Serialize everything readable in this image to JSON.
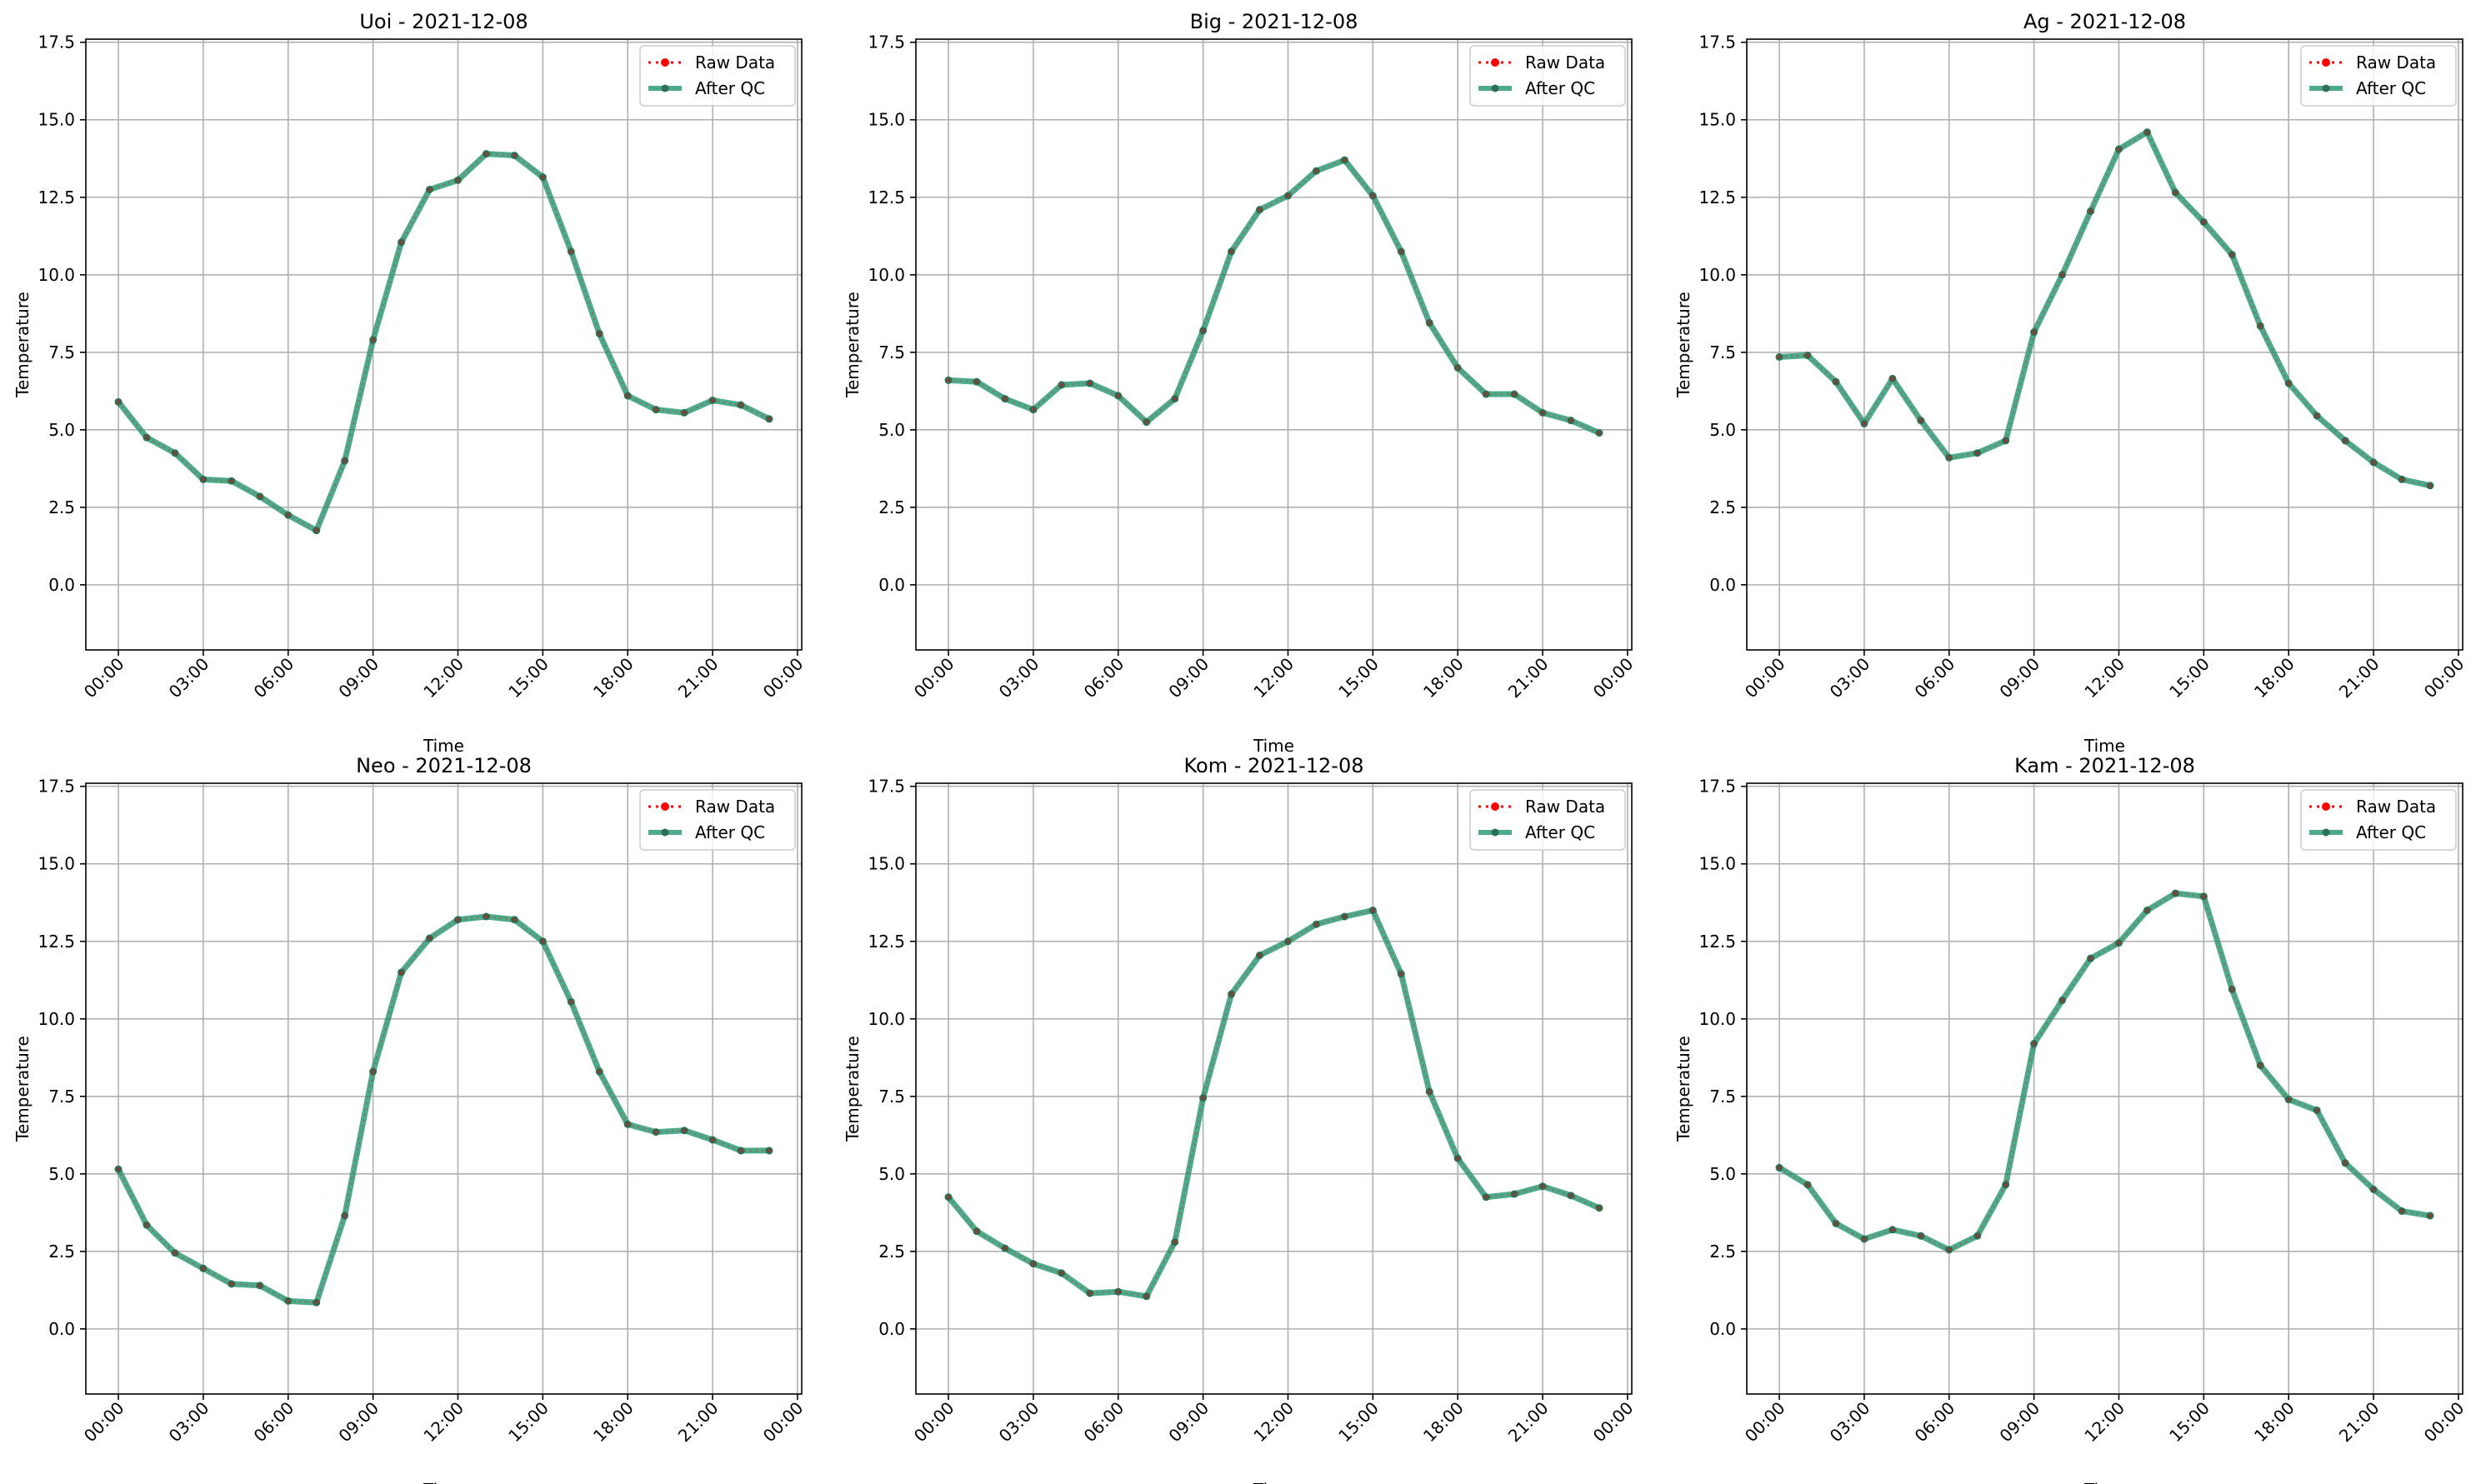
{
  "figure": {
    "colors": {
      "raw": "#ff0000",
      "after_qc": "#2e9b77",
      "after_qc_marker": "#2e6e55",
      "grid": "#b0b0b0"
    }
  },
  "chart_data": [
    {
      "type": "line",
      "title": "Uoi - 2021-12-08",
      "xlabel": "Time",
      "ylabel": "Temperature",
      "x_ticks": [
        "00:00",
        "03:00",
        "06:00",
        "09:00",
        "12:00",
        "15:00",
        "18:00",
        "21:00",
        "00:00"
      ],
      "y_ticks": [
        "0.0",
        "2.5",
        "5.0",
        "7.5",
        "10.0",
        "12.5",
        "15.0",
        "17.5"
      ],
      "ylim": [
        -2.1,
        17.6
      ],
      "xlim_hours": [
        -1.15,
        24.15
      ],
      "grid": true,
      "legend_position": "upper right",
      "x_hours": [
        0,
        1,
        2,
        3,
        4,
        5,
        6,
        7,
        8,
        9,
        10,
        11,
        12,
        13,
        14,
        15,
        16,
        17,
        18,
        19,
        20,
        21,
        22,
        23
      ],
      "series": [
        {
          "name": "Raw Data",
          "style": "dotted-markers",
          "values": [
            5.9,
            4.75,
            4.25,
            3.4,
            3.35,
            2.85,
            2.25,
            1.75,
            4.0,
            7.9,
            11.05,
            12.75,
            13.05,
            13.9,
            13.85,
            13.15,
            10.75,
            8.1,
            6.1,
            5.65,
            5.55,
            5.95,
            5.8,
            5.35
          ]
        },
        {
          "name": "After QC",
          "style": "solid-markers",
          "values": [
            5.9,
            4.75,
            4.25,
            3.4,
            3.35,
            2.85,
            2.25,
            1.75,
            4.0,
            7.9,
            11.05,
            12.75,
            13.05,
            13.9,
            13.85,
            13.15,
            10.75,
            8.1,
            6.1,
            5.65,
            5.55,
            5.95,
            5.8,
            5.35
          ]
        }
      ]
    },
    {
      "type": "line",
      "title": "Big - 2021-12-08",
      "xlabel": "Time",
      "ylabel": "Temperature",
      "x_ticks": [
        "00:00",
        "03:00",
        "06:00",
        "09:00",
        "12:00",
        "15:00",
        "18:00",
        "21:00",
        "00:00"
      ],
      "y_ticks": [
        "0.0",
        "2.5",
        "5.0",
        "7.5",
        "10.0",
        "12.5",
        "15.0",
        "17.5"
      ],
      "ylim": [
        -2.1,
        17.6
      ],
      "xlim_hours": [
        -1.15,
        24.15
      ],
      "grid": true,
      "legend_position": "upper right",
      "x_hours": [
        0,
        1,
        2,
        3,
        4,
        5,
        6,
        7,
        8,
        9,
        10,
        11,
        12,
        13,
        14,
        15,
        16,
        17,
        18,
        19,
        20,
        21,
        22,
        23
      ],
      "series": [
        {
          "name": "Raw Data",
          "style": "dotted-markers",
          "values": [
            6.6,
            6.55,
            6.0,
            5.65,
            6.45,
            6.5,
            6.1,
            5.25,
            6.0,
            8.2,
            10.75,
            12.1,
            12.55,
            13.35,
            13.7,
            12.55,
            10.75,
            8.45,
            7.0,
            6.15,
            6.15,
            5.55,
            5.3,
            4.9
          ]
        },
        {
          "name": "After QC",
          "style": "solid-markers",
          "values": [
            6.6,
            6.55,
            6.0,
            5.65,
            6.45,
            6.5,
            6.1,
            5.25,
            6.0,
            8.2,
            10.75,
            12.1,
            12.55,
            13.35,
            13.7,
            12.55,
            10.75,
            8.45,
            7.0,
            6.15,
            6.15,
            5.55,
            5.3,
            4.9
          ]
        }
      ]
    },
    {
      "type": "line",
      "title": "Ag - 2021-12-08",
      "xlabel": "Time",
      "ylabel": "Temperature",
      "x_ticks": [
        "00:00",
        "03:00",
        "06:00",
        "09:00",
        "12:00",
        "15:00",
        "18:00",
        "21:00",
        "00:00"
      ],
      "y_ticks": [
        "0.0",
        "2.5",
        "5.0",
        "7.5",
        "10.0",
        "12.5",
        "15.0",
        "17.5"
      ],
      "ylim": [
        -2.1,
        17.6
      ],
      "xlim_hours": [
        -1.15,
        24.15
      ],
      "grid": true,
      "legend_position": "upper right",
      "x_hours": [
        0,
        1,
        2,
        3,
        4,
        5,
        6,
        7,
        8,
        9,
        10,
        11,
        12,
        13,
        14,
        15,
        16,
        17,
        18,
        19,
        20,
        21,
        22,
        23
      ],
      "series": [
        {
          "name": "Raw Data",
          "style": "dotted-markers",
          "values": [
            7.35,
            7.4,
            6.55,
            5.2,
            6.65,
            5.3,
            4.1,
            4.25,
            4.65,
            8.15,
            10.0,
            12.05,
            14.05,
            14.6,
            12.65,
            11.7,
            10.65,
            8.35,
            6.5,
            5.45,
            4.65,
            3.95,
            3.4,
            3.2
          ]
        },
        {
          "name": "After QC",
          "style": "solid-markers",
          "values": [
            7.35,
            7.4,
            6.55,
            5.2,
            6.65,
            5.3,
            4.1,
            4.25,
            4.65,
            8.15,
            10.0,
            12.05,
            14.05,
            14.6,
            12.65,
            11.7,
            10.65,
            8.35,
            6.5,
            5.45,
            4.65,
            3.95,
            3.4,
            3.2
          ]
        }
      ]
    },
    {
      "type": "line",
      "title": "Neo - 2021-12-08",
      "xlabel": "Time",
      "ylabel": "Temperature",
      "x_ticks": [
        "00:00",
        "03:00",
        "06:00",
        "09:00",
        "12:00",
        "15:00",
        "18:00",
        "21:00",
        "00:00"
      ],
      "y_ticks": [
        "0.0",
        "2.5",
        "5.0",
        "7.5",
        "10.0",
        "12.5",
        "15.0",
        "17.5"
      ],
      "ylim": [
        -2.1,
        17.6
      ],
      "xlim_hours": [
        -1.15,
        24.15
      ],
      "grid": true,
      "legend_position": "upper right",
      "x_hours": [
        0,
        1,
        2,
        3,
        4,
        5,
        6,
        7,
        8,
        9,
        10,
        11,
        12,
        13,
        14,
        15,
        16,
        17,
        18,
        19,
        20,
        21,
        22,
        23
      ],
      "series": [
        {
          "name": "Raw Data",
          "style": "dotted-markers",
          "values": [
            5.15,
            3.35,
            2.45,
            1.95,
            1.45,
            1.4,
            0.9,
            0.85,
            3.65,
            8.3,
            11.5,
            12.6,
            13.2,
            13.3,
            13.2,
            12.5,
            10.55,
            8.3,
            6.6,
            6.35,
            6.4,
            6.1,
            5.75,
            5.75
          ]
        },
        {
          "name": "After QC",
          "style": "solid-markers",
          "values": [
            5.15,
            3.35,
            2.45,
            1.95,
            1.45,
            1.4,
            0.9,
            0.85,
            3.65,
            8.3,
            11.5,
            12.6,
            13.2,
            13.3,
            13.2,
            12.5,
            10.55,
            8.3,
            6.6,
            6.35,
            6.4,
            6.1,
            5.75,
            5.75
          ]
        }
      ]
    },
    {
      "type": "line",
      "title": "Kom - 2021-12-08",
      "xlabel": "Time",
      "ylabel": "Temperature",
      "x_ticks": [
        "00:00",
        "03:00",
        "06:00",
        "09:00",
        "12:00",
        "15:00",
        "18:00",
        "21:00",
        "00:00"
      ],
      "y_ticks": [
        "0.0",
        "2.5",
        "5.0",
        "7.5",
        "10.0",
        "12.5",
        "15.0",
        "17.5"
      ],
      "ylim": [
        -2.1,
        17.6
      ],
      "xlim_hours": [
        -1.15,
        24.15
      ],
      "grid": true,
      "legend_position": "upper right",
      "x_hours": [
        0,
        1,
        2,
        3,
        4,
        5,
        6,
        7,
        8,
        9,
        10,
        11,
        12,
        13,
        14,
        15,
        16,
        17,
        18,
        19,
        20,
        21,
        22,
        23
      ],
      "series": [
        {
          "name": "Raw Data",
          "style": "dotted-markers",
          "values": [
            4.25,
            3.15,
            2.6,
            2.1,
            1.8,
            1.15,
            1.2,
            1.05,
            2.8,
            7.45,
            10.8,
            12.05,
            12.5,
            13.05,
            13.3,
            13.5,
            11.45,
            7.65,
            5.5,
            4.25,
            4.35,
            4.6,
            4.3,
            3.9
          ]
        },
        {
          "name": "After QC",
          "style": "solid-markers",
          "values": [
            4.25,
            3.15,
            2.6,
            2.1,
            1.8,
            1.15,
            1.2,
            1.05,
            2.8,
            7.45,
            10.8,
            12.05,
            12.5,
            13.05,
            13.3,
            13.5,
            11.45,
            7.65,
            5.5,
            4.25,
            4.35,
            4.6,
            4.3,
            3.9
          ]
        }
      ]
    },
    {
      "type": "line",
      "title": "Kam - 2021-12-08",
      "xlabel": "Time",
      "ylabel": "Temperature",
      "x_ticks": [
        "00:00",
        "03:00",
        "06:00",
        "09:00",
        "12:00",
        "15:00",
        "18:00",
        "21:00",
        "00:00"
      ],
      "y_ticks": [
        "0.0",
        "2.5",
        "5.0",
        "7.5",
        "10.0",
        "12.5",
        "15.0",
        "17.5"
      ],
      "ylim": [
        -2.1,
        17.6
      ],
      "xlim_hours": [
        -1.15,
        24.15
      ],
      "grid": true,
      "legend_position": "upper right",
      "x_hours": [
        0,
        1,
        2,
        3,
        4,
        5,
        6,
        7,
        8,
        9,
        10,
        11,
        12,
        13,
        14,
        15,
        16,
        17,
        18,
        19,
        20,
        21,
        22,
        23
      ],
      "series": [
        {
          "name": "Raw Data",
          "style": "dotted-markers",
          "values": [
            5.2,
            4.65,
            3.4,
            2.9,
            3.2,
            3.0,
            2.55,
            3.0,
            4.65,
            9.2,
            10.6,
            11.95,
            12.45,
            13.5,
            14.05,
            13.95,
            10.95,
            8.5,
            7.4,
            7.05,
            5.35,
            4.5,
            3.8,
            3.65
          ]
        },
        {
          "name": "After QC",
          "style": "solid-markers",
          "values": [
            5.2,
            4.65,
            3.4,
            2.9,
            3.2,
            3.0,
            2.55,
            3.0,
            4.65,
            9.2,
            10.6,
            11.95,
            12.45,
            13.5,
            14.05,
            13.95,
            10.95,
            8.5,
            7.4,
            7.05,
            5.35,
            4.5,
            3.8,
            3.65
          ]
        }
      ]
    }
  ]
}
